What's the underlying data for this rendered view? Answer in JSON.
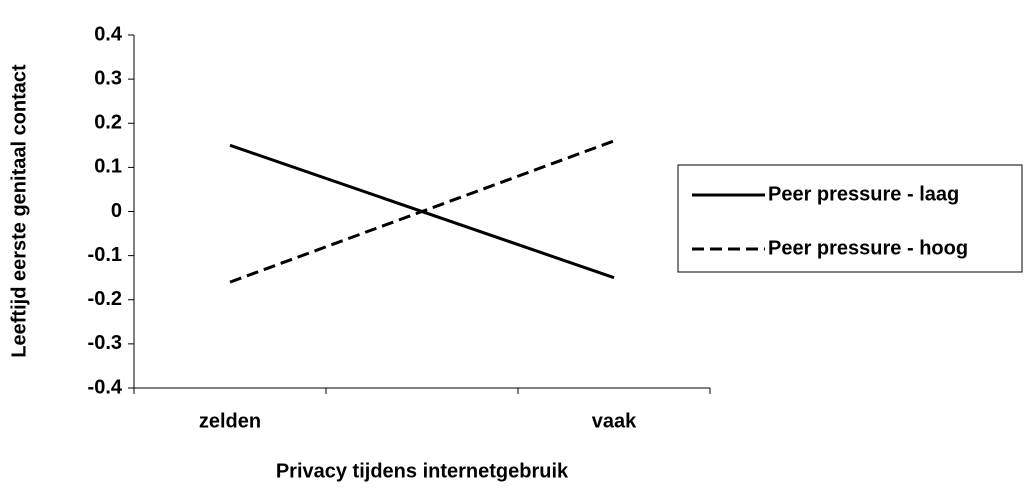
{
  "chart_data": {
    "type": "line",
    "categories": [
      "zelden",
      "vaak"
    ],
    "series": [
      {
        "name": "Peer pressure - laag",
        "color": "#000000",
        "dash": "solid",
        "values": [
          0.15,
          -0.15
        ]
      },
      {
        "name": "Peer pressure - hoog",
        "color": "#000000",
        "dash": "dashed",
        "values": [
          -0.16,
          0.16
        ]
      }
    ],
    "x_label": "Privacy tijdens internetgebruik",
    "y_label": "Leeftijd eerste genitaal contact",
    "ylim": [
      -0.4,
      0.4
    ],
    "yticks": [
      -0.4,
      -0.3,
      -0.2,
      -0.1,
      0,
      0.1,
      0.2,
      0.3,
      0.4
    ],
    "legend": "right"
  }
}
